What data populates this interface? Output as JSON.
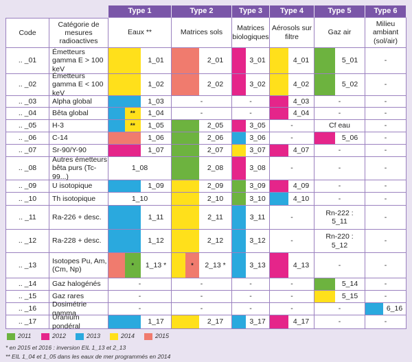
{
  "header": {
    "types": [
      "Type 1",
      "Type 2",
      "Type 3",
      "Type 4",
      "Type 5",
      "Type 6"
    ],
    "columns": [
      "Code",
      "Catégorie de mesures radioactives",
      "Eaux **",
      "Matrices sols",
      "Matrices biologiques",
      "Aérosols sur filtre",
      "Gaz air",
      "Milieu ambiant (sol/air)"
    ]
  },
  "table": {
    "rows": [
      {
        "code": ".. _01",
        "category": "Émetteurs gamma E > 100 keV",
        "cells": [
          {
            "swatches": [
              {
                "color": "#ffe01b"
              }
            ],
            "text": "1_01"
          },
          {
            "swatches": [
              {
                "color": "#f07b6e"
              }
            ],
            "text": "2_01"
          },
          {
            "swatches": [
              {
                "color": "#e5258a"
              }
            ],
            "text": "3_01"
          },
          {
            "swatches": [
              {
                "color": "#ffe01b"
              }
            ],
            "text": "4_01"
          },
          {
            "swatches": [
              {
                "color": "#6db33f"
              }
            ],
            "text": "5_01"
          },
          {
            "text": "-"
          }
        ]
      },
      {
        "code": ".. _02",
        "category": "Émetteurs gamma E < 100 keV",
        "cells": [
          {
            "swatches": [
              {
                "color": "#ffe01b"
              }
            ],
            "text": "1_02"
          },
          {
            "swatches": [
              {
                "color": "#f07b6e"
              }
            ],
            "text": "2_02"
          },
          {
            "swatches": [
              {
                "color": "#e5258a"
              }
            ],
            "text": "3_02"
          },
          {
            "swatches": [
              {
                "color": "#ffe01b"
              }
            ],
            "text": "4_02"
          },
          {
            "swatches": [
              {
                "color": "#6db33f"
              }
            ],
            "text": "5_02"
          },
          {
            "text": "-"
          }
        ]
      },
      {
        "code": ".. _03",
        "category": "Alpha global",
        "cells": [
          {
            "swatches": [
              {
                "color": "#2aa9de"
              }
            ],
            "text": "1_03"
          },
          {
            "text": "-"
          },
          {
            "text": "-"
          },
          {
            "swatches": [
              {
                "color": "#e5258a"
              }
            ],
            "text": "4_03"
          },
          {
            "text": "-"
          },
          {
            "text": "-"
          }
        ]
      },
      {
        "code": ".. _04",
        "category": "Bêta global",
        "cells": [
          {
            "swatches": [
              {
                "color": "#2aa9de"
              },
              {
                "color": "#ffe01b",
                "text": "**"
              }
            ],
            "text": "1_04"
          },
          {
            "text": "-"
          },
          {
            "text": "-"
          },
          {
            "swatches": [
              {
                "color": "#e5258a"
              }
            ],
            "text": "4_04"
          },
          {
            "text": "-"
          },
          {
            "text": "-"
          }
        ]
      },
      {
        "code": ".. _05",
        "category": "H-3",
        "cells": [
          {
            "swatches": [
              {
                "color": "#2aa9de"
              },
              {
                "color": "#ffe01b",
                "text": "**"
              }
            ],
            "text": "1_05"
          },
          {
            "swatches": [
              {
                "color": "#6db33f"
              }
            ],
            "text": "2_05"
          },
          {
            "swatches": [
              {
                "color": "#e5258a"
              }
            ],
            "text": "3_05"
          },
          {
            "text": "-"
          },
          {
            "text": "Cf eau"
          },
          {
            "text": "-"
          }
        ]
      },
      {
        "code": ".. _06",
        "category": "C-14",
        "cells": [
          {
            "swatches": [
              {
                "color": "#f07b6e"
              }
            ],
            "text": "1_06"
          },
          {
            "swatches": [
              {
                "color": "#6db33f"
              }
            ],
            "text": "2_06"
          },
          {
            "swatches": [
              {
                "color": "#2aa9de"
              }
            ],
            "text": "3_06"
          },
          {
            "text": "-"
          },
          {
            "swatches": [
              {
                "color": "#e5258a"
              }
            ],
            "text": "5_06"
          },
          {
            "text": "-"
          }
        ]
      },
      {
        "code": ".. _07",
        "category": "Sr-90/Y-90",
        "cells": [
          {
            "swatches": [
              {
                "color": "#e5258a"
              }
            ],
            "text": "1_07"
          },
          {
            "swatches": [
              {
                "color": "#6db33f"
              }
            ],
            "text": "2_07"
          },
          {
            "swatches": [
              {
                "color": "#ffe01b"
              }
            ],
            "text": "3_07"
          },
          {
            "swatches": [
              {
                "color": "#e5258a"
              }
            ],
            "text": "4_07"
          },
          {
            "text": "-"
          },
          {
            "text": "-"
          }
        ]
      },
      {
        "code": ".. _08",
        "category": "Autres émetteurs bêta purs (Tc-99...)",
        "cells": [
          {
            "text": "1_08"
          },
          {
            "swatches": [
              {
                "color": "#6db33f"
              }
            ],
            "text": "2_08"
          },
          {
            "swatches": [
              {
                "color": "#e5258a"
              }
            ],
            "text": "3_08"
          },
          {
            "text": "-"
          },
          {
            "text": "-"
          },
          {
            "text": "-"
          }
        ]
      },
      {
        "code": ".. _09",
        "category": "U isotopique",
        "cells": [
          {
            "swatches": [
              {
                "color": "#2aa9de"
              }
            ],
            "text": "1_09"
          },
          {
            "swatches": [
              {
                "color": "#ffe01b"
              }
            ],
            "text": "2_09"
          },
          {
            "swatches": [
              {
                "color": "#6db33f"
              }
            ],
            "text": "3_09"
          },
          {
            "swatches": [
              {
                "color": "#e5258a"
              }
            ],
            "text": "4_09"
          },
          {
            "text": "-"
          },
          {
            "text": "-"
          }
        ]
      },
      {
        "code": ".. _10",
        "category": "Th isotopique",
        "cells": [
          {
            "text": "1_10"
          },
          {
            "swatches": [
              {
                "color": "#ffe01b"
              }
            ],
            "text": "2_10"
          },
          {
            "swatches": [
              {
                "color": "#6db33f"
              }
            ],
            "text": "3_10"
          },
          {
            "swatches": [
              {
                "color": "#2aa9de"
              }
            ],
            "text": "4_10"
          },
          {
            "text": "-"
          },
          {
            "text": "-"
          }
        ]
      },
      {
        "code": ".. _11",
        "category": "Ra-226 + desc.",
        "cells": [
          {
            "swatches": [
              {
                "color": "#2aa9de"
              }
            ],
            "text": "1_11"
          },
          {
            "swatches": [
              {
                "color": "#ffe01b"
              }
            ],
            "text": "2_11"
          },
          {
            "swatches": [
              {
                "color": "#2aa9de"
              }
            ],
            "text": "3_11"
          },
          {
            "text": "-"
          },
          {
            "text": "Rn-222 : 5_11"
          },
          {
            "text": "-"
          }
        ]
      },
      {
        "code": ".. _12",
        "category": "Ra-228 + desc.",
        "cells": [
          {
            "swatches": [
              {
                "color": "#2aa9de"
              }
            ],
            "text": "1_12"
          },
          {
            "swatches": [
              {
                "color": "#ffe01b"
              }
            ],
            "text": "2_12"
          },
          {
            "swatches": [
              {
                "color": "#2aa9de"
              }
            ],
            "text": "3_12"
          },
          {
            "text": "-"
          },
          {
            "text": "Rn-220 : 5_12"
          },
          {
            "text": "-"
          }
        ]
      },
      {
        "code": ".. _13",
        "category": "Isotopes Pu, Am, (Cm, Np)",
        "cells": [
          {
            "swatches": [
              {
                "color": "#f07b6e"
              },
              {
                "color": "#6db33f",
                "text": "*"
              }
            ],
            "text": "1_13 *"
          },
          {
            "swatches": [
              {
                "color": "#ffe01b"
              },
              {
                "color": "#f07b6e",
                "text": "*"
              }
            ],
            "text": "2_13 *"
          },
          {
            "swatches": [
              {
                "color": "#2aa9de"
              }
            ],
            "text": "3_13"
          },
          {
            "swatches": [
              {
                "color": "#e5258a"
              }
            ],
            "text": "4_13"
          },
          {
            "text": "-"
          },
          {
            "text": "-"
          }
        ]
      },
      {
        "code": ".. _14",
        "category": "Gaz halogénés",
        "cells": [
          {
            "text": "-"
          },
          {
            "text": "-"
          },
          {
            "text": "-"
          },
          {
            "text": "-"
          },
          {
            "swatches": [
              {
                "color": "#6db33f"
              }
            ],
            "text": "5_14"
          },
          {
            "text": "-"
          }
        ]
      },
      {
        "code": ".. _15",
        "category": "Gaz rares",
        "cells": [
          {
            "text": "-"
          },
          {
            "text": "-"
          },
          {
            "text": "-"
          },
          {
            "text": "-"
          },
          {
            "swatches": [
              {
                "color": "#ffe01b"
              }
            ],
            "text": "5_15"
          },
          {
            "text": "-"
          }
        ]
      },
      {
        "code": ".. _16",
        "category": "Dosimétrie gamma",
        "cells": [
          {
            "text": "-"
          },
          {
            "text": "-"
          },
          {
            "text": "-"
          },
          {
            "text": "-"
          },
          {
            "text": "-"
          },
          {
            "swatches": [
              {
                "color": "#2aa9de"
              }
            ],
            "text": "6_16"
          }
        ]
      },
      {
        "code": ".. _17",
        "category": "Uranium pondéral",
        "cells": [
          {
            "swatches": [
              {
                "color": "#2aa9de"
              }
            ],
            "text": "1_17"
          },
          {
            "swatches": [
              {
                "color": "#ffe01b"
              }
            ],
            "text": "2_17"
          },
          {
            "swatches": [
              {
                "color": "#2aa9de"
              }
            ],
            "text": "3_17"
          },
          {
            "swatches": [
              {
                "color": "#e5258a"
              }
            ],
            "text": "4_17"
          },
          {
            "text": "-"
          },
          {
            "text": "-"
          }
        ]
      }
    ]
  },
  "legend": [
    {
      "label": "2011",
      "color": "#6db33f"
    },
    {
      "label": "2012",
      "color": "#e5258a"
    },
    {
      "label": "2013",
      "color": "#2aa9de"
    },
    {
      "label": "2014",
      "color": "#ffe01b"
    },
    {
      "label": "2015",
      "color": "#f07b6e"
    }
  ],
  "notes": [
    "* en 2015 et 2016 : inversion EIL 1_13 et 2_13",
    "** EIL 1_04 et 1_05 dans les eaux de mer programmés en 2014"
  ]
}
